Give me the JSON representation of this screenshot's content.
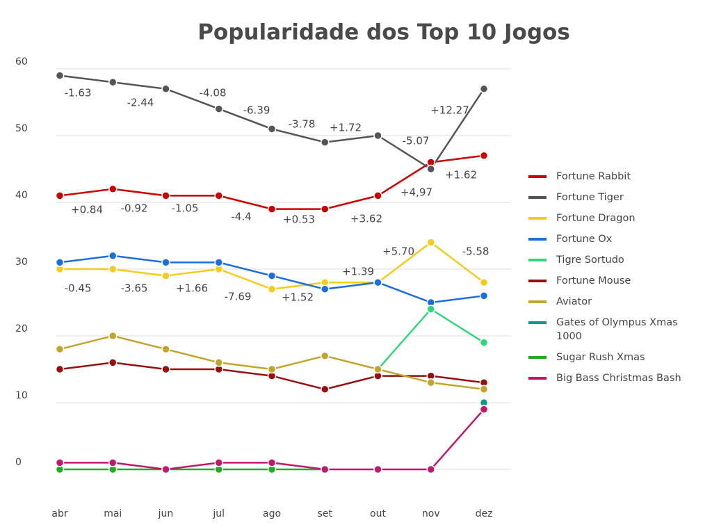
{
  "chart_data": {
    "type": "line",
    "title": "Popularidade dos Top 10 Jogos",
    "categories": [
      "abr",
      "mai",
      "jun",
      "jul",
      "ago",
      "set",
      "out",
      "nov",
      "dez"
    ],
    "ylim": [
      0,
      60
    ],
    "yticks": [
      0,
      10,
      20,
      30,
      40,
      50,
      60
    ],
    "grid": true,
    "legend": "right",
    "series": [
      {
        "name": "Fortune Rabbit",
        "color": "#cc0000",
        "values": [
          41,
          42,
          41,
          41,
          39,
          39,
          41,
          46,
          47
        ]
      },
      {
        "name": "Fortune Tiger",
        "color": "#555555",
        "values": [
          59,
          58,
          57,
          54,
          51,
          49,
          50,
          45,
          57
        ]
      },
      {
        "name": "Fortune Dragon",
        "color": "#f5cc1a",
        "values": [
          30,
          30,
          29,
          30,
          27,
          28,
          28,
          34,
          28
        ]
      },
      {
        "name": "Fortune Ox",
        "color": "#1a6fe0",
        "values": [
          31,
          32,
          31,
          31,
          29,
          27,
          28,
          25,
          26
        ]
      },
      {
        "name": "Tigre Sortudo",
        "color": "#2ed87a",
        "values": [
          null,
          null,
          null,
          null,
          null,
          null,
          15,
          24,
          19
        ]
      },
      {
        "name": "Fortune Mouse",
        "color": "#990f0f",
        "values": [
          15,
          16,
          15,
          15,
          14,
          12,
          14,
          14,
          13
        ]
      },
      {
        "name": "Aviator",
        "color": "#c2a52a",
        "values": [
          18,
          20,
          18,
          16,
          15,
          17,
          15,
          13,
          12
        ]
      },
      {
        "name": "Gates of Olympus Xmas 1000",
        "color": "#12998a",
        "values": [
          null,
          null,
          null,
          null,
          null,
          null,
          null,
          null,
          10
        ]
      },
      {
        "name": "Sugar Rush Xmas",
        "color": "#22aa22",
        "values": [
          0,
          0,
          0,
          0,
          0,
          0,
          null,
          null,
          null
        ]
      },
      {
        "name": "Big Bass Christmas Bash",
        "color": "#c2186b",
        "values": [
          1,
          1,
          0,
          1,
          1,
          0,
          0,
          0,
          9
        ]
      }
    ],
    "annotations": [
      "-1.63",
      "-2.44",
      "-4.08",
      "-6.39",
      "-3.78",
      "+1.72",
      "-5.07",
      "+12.27",
      "+1.62",
      "+0.84",
      "-0.92",
      "-1.05",
      "-4.4",
      "+0.53",
      "+3.62",
      "+4,97",
      "+5.70",
      "-5.58",
      "+1.39",
      "-0.45",
      "-3.65",
      "+1.66",
      "-7.69",
      "+1.52"
    ]
  }
}
